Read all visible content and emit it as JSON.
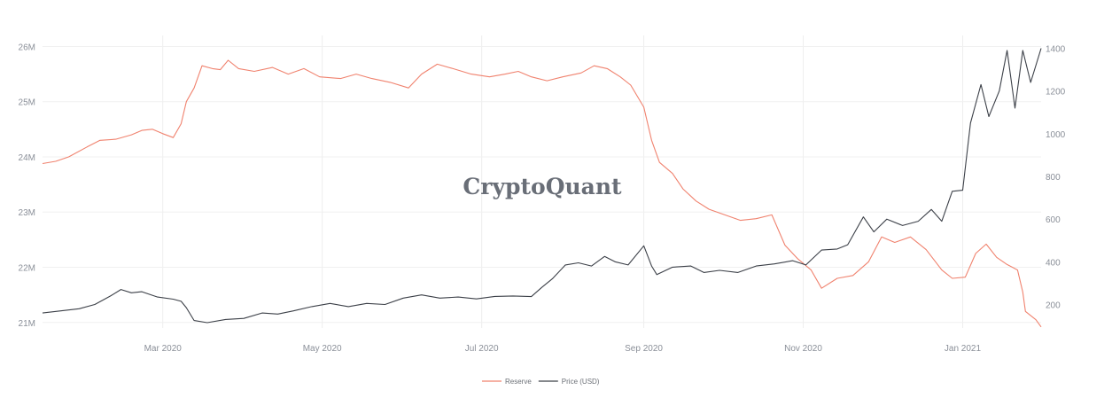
{
  "watermark": "CryptoQuant",
  "chart_data": {
    "type": "line",
    "grid": true,
    "legend_position": "bottom-center",
    "x_start": "2020-01-15",
    "x_end": "2021-01-31",
    "x_ticks": [
      {
        "date": "2020-03-01",
        "label": "Mar 2020"
      },
      {
        "date": "2020-05-01",
        "label": "May 2020"
      },
      {
        "date": "2020-07-01",
        "label": "Jul 2020"
      },
      {
        "date": "2020-09-01",
        "label": "Sep 2020"
      },
      {
        "date": "2020-11-01",
        "label": "Nov 2020"
      },
      {
        "date": "2021-01-01",
        "label": "Jan 2021"
      }
    ],
    "y_left": {
      "range": [
        20.9,
        26.2
      ],
      "ticks": [
        {
          "value": 21,
          "label": "21M"
        },
        {
          "value": 22,
          "label": "22M"
        },
        {
          "value": 23,
          "label": "23M"
        },
        {
          "value": 24,
          "label": "24M"
        },
        {
          "value": 25,
          "label": "25M"
        },
        {
          "value": 26,
          "label": "26M"
        }
      ]
    },
    "y_right": {
      "range": [
        90,
        1460
      ],
      "ticks": [
        {
          "value": 200,
          "label": "200"
        },
        {
          "value": 400,
          "label": "400"
        },
        {
          "value": 600,
          "label": "600"
        },
        {
          "value": 800,
          "label": "800"
        },
        {
          "value": 1000,
          "label": "1000"
        },
        {
          "value": 1200,
          "label": "1200"
        },
        {
          "value": 1400,
          "label": "1400"
        }
      ]
    },
    "series": [
      {
        "name": "Reserve",
        "axis": "left",
        "color": "#f0826e",
        "points": [
          [
            "2020-01-15",
            23.88
          ],
          [
            "2020-01-20",
            23.92
          ],
          [
            "2020-01-25",
            24.0
          ],
          [
            "2020-02-01",
            24.18
          ],
          [
            "2020-02-06",
            24.3
          ],
          [
            "2020-02-12",
            24.32
          ],
          [
            "2020-02-18",
            24.4
          ],
          [
            "2020-02-22",
            24.48
          ],
          [
            "2020-02-26",
            24.5
          ],
          [
            "2020-03-01",
            24.42
          ],
          [
            "2020-03-05",
            24.35
          ],
          [
            "2020-03-08",
            24.6
          ],
          [
            "2020-03-10",
            25.0
          ],
          [
            "2020-03-13",
            25.25
          ],
          [
            "2020-03-16",
            25.65
          ],
          [
            "2020-03-20",
            25.6
          ],
          [
            "2020-03-23",
            25.58
          ],
          [
            "2020-03-26",
            25.75
          ],
          [
            "2020-03-30",
            25.6
          ],
          [
            "2020-04-05",
            25.55
          ],
          [
            "2020-04-12",
            25.62
          ],
          [
            "2020-04-18",
            25.5
          ],
          [
            "2020-04-24",
            25.6
          ],
          [
            "2020-04-30",
            25.45
          ],
          [
            "2020-05-08",
            25.42
          ],
          [
            "2020-05-14",
            25.5
          ],
          [
            "2020-05-20",
            25.42
          ],
          [
            "2020-05-27",
            25.35
          ],
          [
            "2020-06-03",
            25.25
          ],
          [
            "2020-06-08",
            25.5
          ],
          [
            "2020-06-14",
            25.68
          ],
          [
            "2020-06-20",
            25.6
          ],
          [
            "2020-06-27",
            25.5
          ],
          [
            "2020-07-04",
            25.45
          ],
          [
            "2020-07-10",
            25.5
          ],
          [
            "2020-07-15",
            25.55
          ],
          [
            "2020-07-20",
            25.45
          ],
          [
            "2020-07-26",
            25.38
          ],
          [
            "2020-08-01",
            25.45
          ],
          [
            "2020-08-08",
            25.52
          ],
          [
            "2020-08-13",
            25.65
          ],
          [
            "2020-08-18",
            25.6
          ],
          [
            "2020-08-23",
            25.45
          ],
          [
            "2020-08-27",
            25.3
          ],
          [
            "2020-09-01",
            24.9
          ],
          [
            "2020-09-04",
            24.3
          ],
          [
            "2020-09-07",
            23.9
          ],
          [
            "2020-09-12",
            23.7
          ],
          [
            "2020-09-16",
            23.42
          ],
          [
            "2020-09-21",
            23.2
          ],
          [
            "2020-09-26",
            23.05
          ],
          [
            "2020-10-02",
            22.95
          ],
          [
            "2020-10-08",
            22.85
          ],
          [
            "2020-10-14",
            22.88
          ],
          [
            "2020-10-20",
            22.95
          ],
          [
            "2020-10-25",
            22.4
          ],
          [
            "2020-10-30",
            22.15
          ],
          [
            "2020-11-04",
            21.95
          ],
          [
            "2020-11-08",
            21.62
          ],
          [
            "2020-11-14",
            21.8
          ],
          [
            "2020-11-20",
            21.85
          ],
          [
            "2020-11-26",
            22.1
          ],
          [
            "2020-12-01",
            22.55
          ],
          [
            "2020-12-06",
            22.45
          ],
          [
            "2020-12-12",
            22.55
          ],
          [
            "2020-12-18",
            22.32
          ],
          [
            "2020-12-24",
            21.95
          ],
          [
            "2020-12-28",
            21.8
          ],
          [
            "2021-01-02",
            21.82
          ],
          [
            "2021-01-06",
            22.25
          ],
          [
            "2021-01-10",
            22.42
          ],
          [
            "2021-01-14",
            22.18
          ],
          [
            "2021-01-18",
            22.05
          ],
          [
            "2021-01-22",
            21.95
          ],
          [
            "2021-01-24",
            21.55
          ],
          [
            "2021-01-25",
            21.2
          ],
          [
            "2021-01-29",
            21.05
          ],
          [
            "2021-01-31",
            20.92
          ]
        ]
      },
      {
        "name": "Price (USD)",
        "axis": "right",
        "color": "#3c4048",
        "points": [
          [
            "2020-01-15",
            160
          ],
          [
            "2020-01-22",
            170
          ],
          [
            "2020-01-29",
            180
          ],
          [
            "2020-02-04",
            200
          ],
          [
            "2020-02-10",
            240
          ],
          [
            "2020-02-14",
            270
          ],
          [
            "2020-02-18",
            255
          ],
          [
            "2020-02-22",
            260
          ],
          [
            "2020-02-28",
            235
          ],
          [
            "2020-03-05",
            225
          ],
          [
            "2020-03-08",
            215
          ],
          [
            "2020-03-10",
            185
          ],
          [
            "2020-03-13",
            125
          ],
          [
            "2020-03-18",
            115
          ],
          [
            "2020-03-25",
            130
          ],
          [
            "2020-04-01",
            135
          ],
          [
            "2020-04-08",
            160
          ],
          [
            "2020-04-14",
            155
          ],
          [
            "2020-04-20",
            170
          ],
          [
            "2020-04-27",
            190
          ],
          [
            "2020-05-04",
            205
          ],
          [
            "2020-05-11",
            190
          ],
          [
            "2020-05-18",
            205
          ],
          [
            "2020-05-25",
            200
          ],
          [
            "2020-06-01",
            230
          ],
          [
            "2020-06-08",
            245
          ],
          [
            "2020-06-15",
            230
          ],
          [
            "2020-06-22",
            235
          ],
          [
            "2020-06-29",
            226
          ],
          [
            "2020-07-06",
            238
          ],
          [
            "2020-07-13",
            240
          ],
          [
            "2020-07-20",
            237
          ],
          [
            "2020-07-24",
            280
          ],
          [
            "2020-07-28",
            320
          ],
          [
            "2020-08-02",
            385
          ],
          [
            "2020-08-07",
            395
          ],
          [
            "2020-08-12",
            380
          ],
          [
            "2020-08-17",
            425
          ],
          [
            "2020-08-21",
            400
          ],
          [
            "2020-08-26",
            385
          ],
          [
            "2020-09-01",
            475
          ],
          [
            "2020-09-04",
            380
          ],
          [
            "2020-09-06",
            340
          ],
          [
            "2020-09-12",
            375
          ],
          [
            "2020-09-19",
            380
          ],
          [
            "2020-09-24",
            350
          ],
          [
            "2020-09-30",
            360
          ],
          [
            "2020-10-07",
            350
          ],
          [
            "2020-10-14",
            380
          ],
          [
            "2020-10-21",
            390
          ],
          [
            "2020-10-28",
            405
          ],
          [
            "2020-11-02",
            385
          ],
          [
            "2020-11-08",
            455
          ],
          [
            "2020-11-14",
            460
          ],
          [
            "2020-11-18",
            480
          ],
          [
            "2020-11-24",
            610
          ],
          [
            "2020-11-28",
            540
          ],
          [
            "2020-12-03",
            600
          ],
          [
            "2020-12-09",
            570
          ],
          [
            "2020-12-15",
            590
          ],
          [
            "2020-12-20",
            645
          ],
          [
            "2020-12-24",
            590
          ],
          [
            "2020-12-28",
            730
          ],
          [
            "2021-01-01",
            735
          ],
          [
            "2021-01-04",
            1050
          ],
          [
            "2021-01-08",
            1230
          ],
          [
            "2021-01-11",
            1080
          ],
          [
            "2021-01-15",
            1200
          ],
          [
            "2021-01-18",
            1390
          ],
          [
            "2021-01-21",
            1120
          ],
          [
            "2021-01-24",
            1390
          ],
          [
            "2021-01-27",
            1240
          ],
          [
            "2021-01-31",
            1400
          ]
        ]
      }
    ]
  }
}
